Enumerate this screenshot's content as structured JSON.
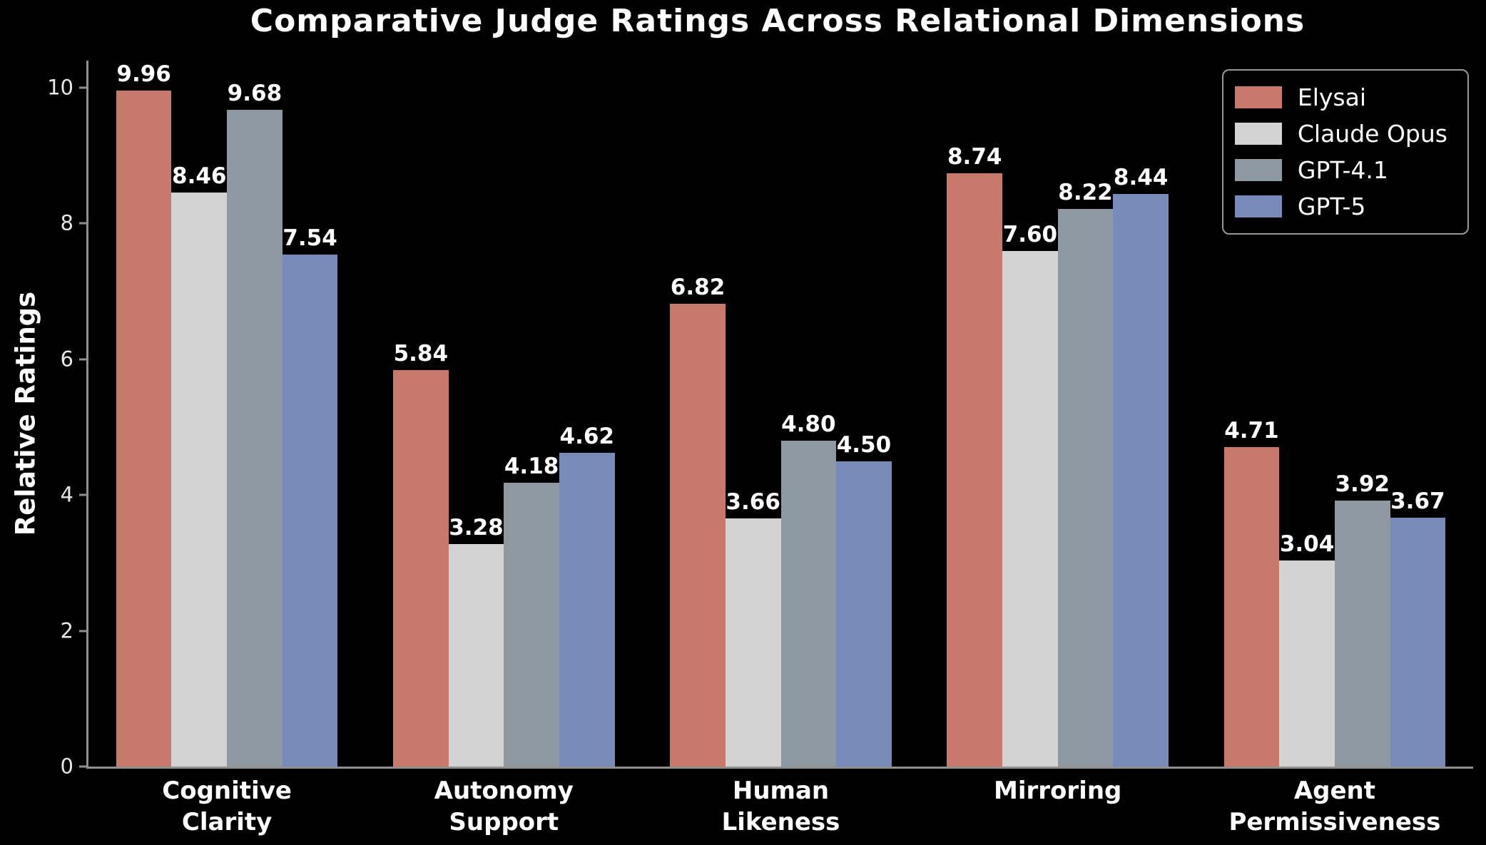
{
  "chart_data": {
    "type": "bar",
    "title": "Comparative Judge Ratings Across Relational Dimensions",
    "xlabel": "",
    "ylabel": "Relative Ratings",
    "ylim": [
      0,
      10.4
    ],
    "yticks": [
      0,
      2,
      4,
      6,
      8,
      10
    ],
    "grid": false,
    "legend_position": "upper right",
    "background_color": "#000000",
    "text_color": "#ffffff",
    "axis_color": "#8f8f8f",
    "categories": [
      "Cognitive\nClarity",
      "Autonomy\nSupport",
      "Human\nLikeness",
      "Mirroring",
      "Agent\nPermissiveness"
    ],
    "series": [
      {
        "name": "Elysai",
        "color": "#c7796c",
        "values": [
          9.96,
          5.84,
          6.82,
          8.74,
          4.71
        ]
      },
      {
        "name": "Claude Opus",
        "color": "#d3d3d3",
        "values": [
          8.46,
          3.28,
          3.66,
          7.6,
          3.04
        ]
      },
      {
        "name": "GPT-4.1",
        "color": "#8d98a1",
        "values": [
          9.68,
          4.18,
          4.8,
          8.22,
          3.92
        ]
      },
      {
        "name": "GPT-5",
        "color": "#788ab8",
        "values": [
          7.54,
          4.62,
          4.5,
          8.44,
          3.67
        ]
      }
    ],
    "value_label_decimals": 2
  }
}
